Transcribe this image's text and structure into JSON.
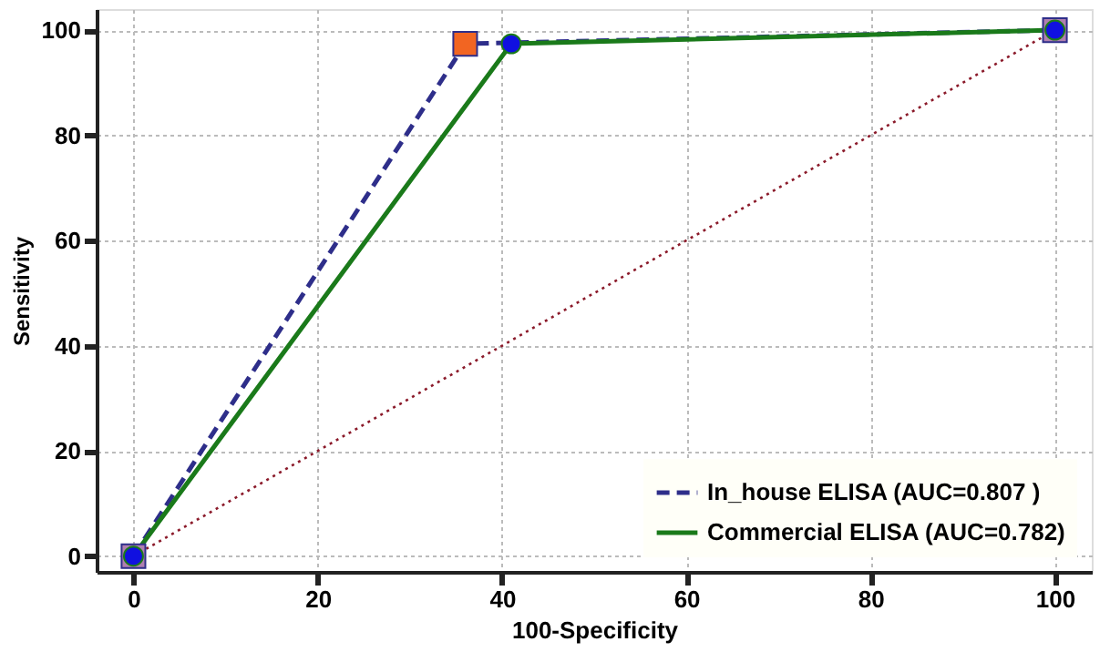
{
  "chart_data": {
    "type": "line",
    "xlabel": "100-Specificity",
    "ylabel": "Sensitivity",
    "xlim": [
      -4,
      104
    ],
    "ylim": [
      -3,
      104
    ],
    "xticks": [
      0,
      20,
      40,
      60,
      80,
      100
    ],
    "yticks": [
      0,
      20,
      40,
      60,
      80,
      100
    ],
    "grid": true,
    "legend": "bottom right",
    "series": [
      {
        "name": "In_house ELISA (AUC=0.807 )",
        "color": "#2e2e8a",
        "line_style": "dashed",
        "marker": "square",
        "colors": [
          "#b080b0",
          "#f26522",
          "#b080b0"
        ],
        "x": [
          0,
          36,
          100
        ],
        "values": [
          0,
          97.4,
          100
        ]
      },
      {
        "name": "Commercial ELISA (AUC=0.782)",
        "color": "#1a7a1a",
        "line_style": "solid",
        "marker": "circle",
        "colors": [
          "#1010e0",
          "#1010e0",
          "#1010e0"
        ],
        "x": [
          0,
          41,
          100
        ],
        "values": [
          0,
          97.4,
          100
        ]
      },
      {
        "color": "#8b1a2a",
        "line_style": "dotted",
        "marker": "none",
        "x": [
          0,
          100
        ],
        "values": [
          0,
          100
        ]
      }
    ]
  }
}
